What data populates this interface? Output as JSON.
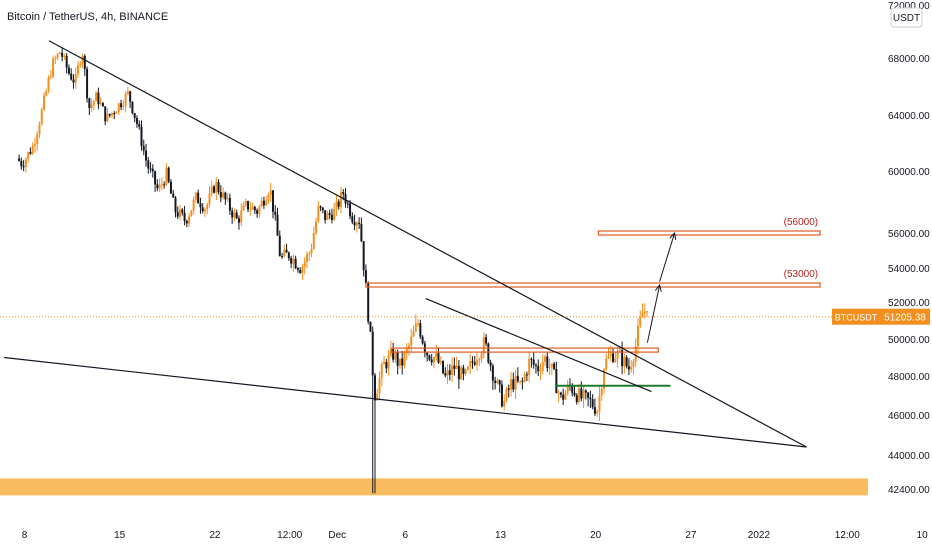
{
  "header": {
    "symbol_title": "Bitcoin / TetherUS, 4h, BINANCE",
    "currency_badge": "USDT"
  },
  "price_axis": {
    "ticks": [
      {
        "value": 72000,
        "label": "72000.00"
      },
      {
        "value": 68000,
        "label": "68000.00"
      },
      {
        "value": 64000,
        "label": "64000.00"
      },
      {
        "value": 60000,
        "label": "60000.00"
      },
      {
        "value": 56000,
        "label": "56000.00"
      },
      {
        "value": 54000,
        "label": "54000.00"
      },
      {
        "value": 52000,
        "label": "52000.00"
      },
      {
        "value": 50000,
        "label": "50000.00"
      },
      {
        "value": 48000,
        "label": "48000.00"
      },
      {
        "value": 46000,
        "label": "46000.00"
      },
      {
        "value": 44000,
        "label": "44000.00"
      },
      {
        "value": 42400,
        "label": "42400.00"
      }
    ]
  },
  "time_axis": {
    "ticks": [
      {
        "t": 0,
        "label": "8"
      },
      {
        "t": 7,
        "label": "15"
      },
      {
        "t": 14,
        "label": "22"
      },
      {
        "t": 19.5,
        "label": "12:00"
      },
      {
        "t": 23,
        "label": "Dec"
      },
      {
        "t": 28,
        "label": "6"
      },
      {
        "t": 35,
        "label": "13"
      },
      {
        "t": 42,
        "label": "20"
      },
      {
        "t": 49,
        "label": "27"
      },
      {
        "t": 54,
        "label": "2022"
      },
      {
        "t": 60.5,
        "label": "12:00"
      },
      {
        "t": 66,
        "label": "10"
      }
    ]
  },
  "current_price": {
    "symbol": "BTCUSDT",
    "value": 51205.38,
    "label": "51205.38"
  },
  "chart_data": {
    "type": "candlestick",
    "title": "Bitcoin / TetherUS, 4h, BINANCE",
    "x_unit": "days since Nov 8, 2021",
    "ylim": [
      42400,
      72000
    ],
    "grid": false,
    "price_path": [
      [
        -0.5,
        61000
      ],
      [
        0,
        60500
      ],
      [
        0.8,
        61800
      ],
      [
        1.5,
        64500
      ],
      [
        2.2,
        67500
      ],
      [
        2.8,
        68500
      ],
      [
        3.4,
        67000
      ],
      [
        3.9,
        66300
      ],
      [
        4.4,
        68700
      ],
      [
        4.9,
        64500
      ],
      [
        5.5,
        65300
      ],
      [
        6.2,
        63700
      ],
      [
        7,
        64600
      ],
      [
        7.8,
        65500
      ],
      [
        8.5,
        63200
      ],
      [
        9.2,
        60400
      ],
      [
        10,
        58700
      ],
      [
        10.6,
        59800
      ],
      [
        11.2,
        57500
      ],
      [
        12,
        56800
      ],
      [
        12.8,
        58300
      ],
      [
        13.5,
        57600
      ],
      [
        14.2,
        59200
      ],
      [
        15,
        58000
      ],
      [
        15.8,
        56800
      ],
      [
        16.5,
        57800
      ],
      [
        17.3,
        57400
      ],
      [
        18.2,
        59000
      ],
      [
        19,
        54500
      ],
      [
        19.6,
        54800
      ],
      [
        20.5,
        54000
      ],
      [
        21.2,
        55000
      ],
      [
        21.8,
        57600
      ],
      [
        22.3,
        57000
      ],
      [
        23,
        57400
      ],
      [
        23.6,
        58600
      ],
      [
        24.3,
        57000
      ],
      [
        24.8,
        56800
      ],
      [
        25.2,
        53400
      ],
      [
        25.6,
        50000
      ],
      [
        25.9,
        47000
      ],
      [
        26.6,
        48600
      ],
      [
        27.3,
        49200
      ],
      [
        27.8,
        48500
      ],
      [
        28.5,
        49700
      ],
      [
        29.1,
        50900
      ],
      [
        29.7,
        49300
      ],
      [
        30.5,
        48900
      ],
      [
        31.1,
        47900
      ],
      [
        31.8,
        48500
      ],
      [
        32.5,
        47800
      ],
      [
        33.2,
        48900
      ],
      [
        34,
        49800
      ],
      [
        34.8,
        47700
      ],
      [
        35.4,
        46600
      ],
      [
        36,
        47700
      ],
      [
        36.7,
        47500
      ],
      [
        37.3,
        48800
      ],
      [
        37.9,
        48400
      ],
      [
        38.4,
        49000
      ],
      [
        39,
        48200
      ],
      [
        39.6,
        46800
      ],
      [
        40.3,
        47500
      ],
      [
        41,
        46900
      ],
      [
        41.7,
        46700
      ],
      [
        42.3,
        46300
      ],
      [
        42.8,
        48700
      ],
      [
        43.4,
        49200
      ],
      [
        43.9,
        49100
      ],
      [
        44.6,
        48400
      ],
      [
        45.1,
        49600
      ],
      [
        45.5,
        51200
      ],
      [
        45.9,
        51300
      ]
    ],
    "candle_range": [
      -0.4,
      45.9
    ],
    "candle_step_days": 0.1667,
    "horizontal_levels": [
      {
        "price": 56000,
        "label": "(56000)",
        "kind": "resistance-target",
        "color": "#e05a22",
        "t_start": 42.2,
        "t_end": 58.5
      },
      {
        "price": 53000,
        "label": "(53000)",
        "kind": "resistance-target",
        "color": "#e05a22",
        "t_start": 25.1,
        "t_end": 58.5
      },
      {
        "price": 49400,
        "label": "",
        "kind": "resistance",
        "color": "#e05a22",
        "t_start": 27.0,
        "t_end": 46.6
      },
      {
        "price": 47500,
        "label": "",
        "kind": "support",
        "color": "#1e7b2c",
        "t_start": 39.0,
        "t_end": 47.5
      }
    ],
    "trendlines": [
      {
        "from": [
          1.8,
          69300
        ],
        "to": [
          57.5,
          44400
        ],
        "color": "#131722"
      },
      {
        "from": [
          29.5,
          52200
        ],
        "to": [
          46.1,
          47200
        ],
        "color": "#131722"
      },
      {
        "from": [
          -1.5,
          49000
        ],
        "to": [
          57.5,
          44400
        ],
        "color": "#131722"
      }
    ],
    "projection_arrows": [
      {
        "from": [
          45.8,
          49800
        ],
        "to": [
          46.7,
          53000
        ],
        "color": "#131722"
      },
      {
        "from": [
          46.7,
          53200
        ],
        "to": [
          47.8,
          56000
        ],
        "color": "#131722"
      }
    ],
    "demand_zone": {
      "from_price": 42100,
      "to_price": 42900,
      "color": "#f7b043"
    },
    "colors": {
      "up": "#f28f1f",
      "down": "#131722",
      "current_price": "#f28f1f",
      "resistance": "#e05a22",
      "support": "#1e7b2c"
    }
  }
}
